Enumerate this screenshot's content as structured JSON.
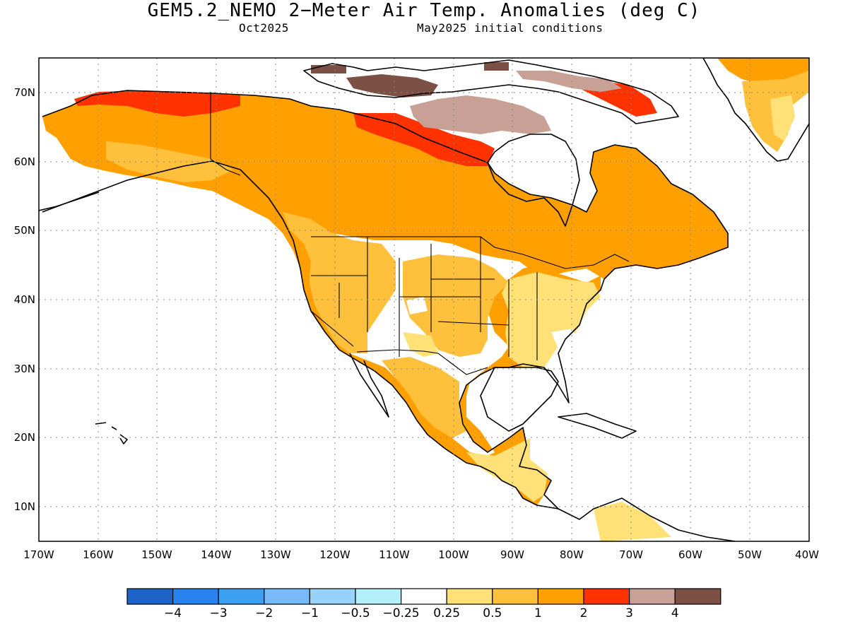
{
  "title": "GEM5.2_NEMO 2−Meter Air Temp. Anomalies (deg C)",
  "valid_month": "Oct2025",
  "init_conditions": "May2025 initial conditions",
  "axes": {
    "lat_labels": [
      "70N",
      "60N",
      "50N",
      "40N",
      "30N",
      "20N",
      "10N"
    ],
    "lon_labels": [
      "170W",
      "160W",
      "150W",
      "140W",
      "130W",
      "120W",
      "110W",
      "100W",
      "90W",
      "80W",
      "70W",
      "60W",
      "50W",
      "40W"
    ]
  },
  "colorbar": {
    "colors": [
      "#1e64c8",
      "#2882f0",
      "#3ca0f0",
      "#78b9fa",
      "#96d2fa",
      "#b4f0fa",
      "#ffffff",
      "#ffe178",
      "#ffc03c",
      "#ffa000",
      "#ff3200",
      "#c8a096",
      "#7d5046"
    ],
    "labels": [
      "−4",
      "−3",
      "−2",
      "−1",
      "−0.5",
      "−0.25",
      "0.25",
      "0.5",
      "1",
      "2",
      "3",
      "4"
    ]
  }
}
